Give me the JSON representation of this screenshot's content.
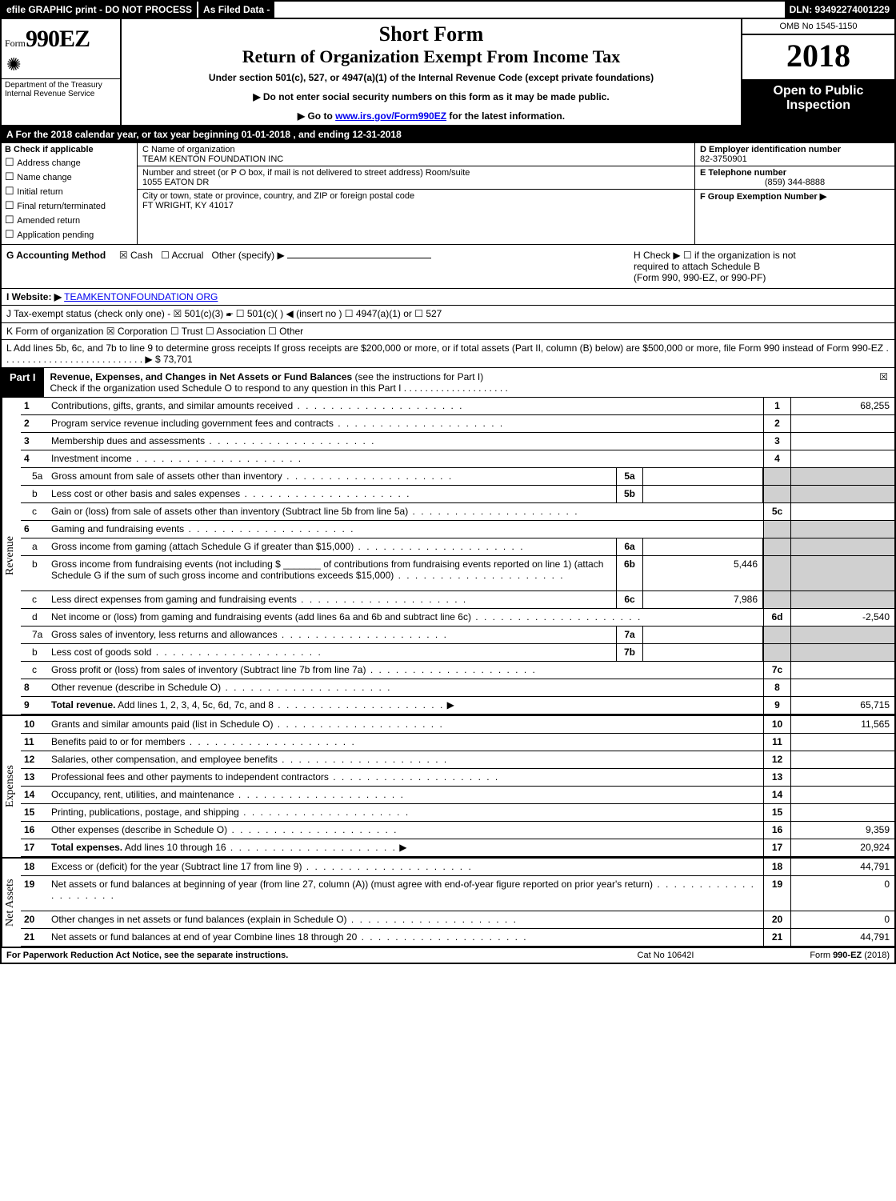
{
  "topbar": {
    "efile": "efile GRAPHIC print - DO NOT PROCESS",
    "asfiled_label": "As Filed Data -",
    "asfiled_value": "",
    "dln": "DLN: 93492274001229"
  },
  "header": {
    "form_small": "Form",
    "form_big": "990EZ",
    "shortform": "Short Form",
    "return_title": "Return of Organization Exempt From Income Tax",
    "under": "Under section 501(c), 527, or 4947(a)(1) of the Internal Revenue Code (except private foundations)",
    "arrow1": "▶ Do not enter social security numbers on this form as it may be made public.",
    "arrow2_pre": "▶ Go to ",
    "arrow2_link": "www.irs.gov/Form990EZ",
    "arrow2_post": " for the latest information.",
    "dept1": "Department of the Treasury",
    "dept2": "Internal Revenue Service",
    "omb": "OMB No 1545-1150",
    "year": "2018",
    "open": "Open to Public Inspection"
  },
  "lineA": "A  For the 2018 calendar year, or tax year beginning 01-01-2018             , and ending 12-31-2018",
  "b": {
    "title": "B  Check if applicable",
    "items": [
      "Address change",
      "Name change",
      "Initial return",
      "Final return/terminated",
      "Amended return",
      "Application pending"
    ]
  },
  "c": {
    "name_lbl": "C Name of organization",
    "name_val": "TEAM KENTON FOUNDATION INC",
    "street_lbl": "Number and street (or P O box, if mail is not delivered to street address)  Room/suite",
    "street_val": "1055 EATON DR",
    "city_lbl": "City or town, state or province, country, and ZIP or foreign postal code",
    "city_val": "FT WRIGHT, KY  41017"
  },
  "d": {
    "ein_lbl": "D Employer identification number",
    "ein_val": "82-3750901",
    "tel_lbl": "E Telephone number",
    "tel_val": "(859) 344-8888",
    "grp_lbl": "F Group Exemption Number   ▶"
  },
  "g": {
    "label": "G Accounting Method",
    "cash": "☒ Cash",
    "accrual": "☐ Accrual",
    "other": "Other (specify) ▶"
  },
  "h": {
    "line1": "H  Check ▶  ☐  if the organization is not",
    "line2": "required to attach Schedule B",
    "line3": "(Form 990, 990-EZ, or 990-PF)"
  },
  "i": {
    "label": "I Website: ▶",
    "link": "TEAMKENTONFOUNDATION ORG"
  },
  "j": "J Tax-exempt status (check only one) - ☒ 501(c)(3) 🖝 ☐ 501(c)(  ) ◀ (insert no ) ☐ 4947(a)(1) or ☐ 527",
  "k": "K Form of organization     ☒ Corporation   ☐ Trust   ☐ Association   ☐ Other",
  "l": {
    "text": "L Add lines 5b, 6c, and 7b to line 9 to determine gross receipts  If gross receipts are $200,000 or more, or if total assets (Part II, column (B) below) are $500,000 or more, file Form 990 instead of Form 990-EZ",
    "arrow": "▶ $ 73,701"
  },
  "part1": {
    "tab": "Part I",
    "title": "Revenue, Expenses, and Changes in Net Assets or Fund Balances",
    "paren": " (see the instructions for Part I)",
    "sub": "Check if the organization used Schedule O to respond to any question in this Part I",
    "chk": "☒"
  },
  "sections": {
    "revenue_label": "Revenue",
    "expenses_label": "Expenses",
    "netassets_label": "Net Assets"
  },
  "rows": [
    {
      "n": "1",
      "d": "Contributions, gifts, grants, and similar amounts received",
      "rn": "1",
      "rv": "68,255"
    },
    {
      "n": "2",
      "d": "Program service revenue including government fees and contracts",
      "rn": "2",
      "rv": ""
    },
    {
      "n": "3",
      "d": "Membership dues and assessments",
      "rn": "3",
      "rv": ""
    },
    {
      "n": "4",
      "d": "Investment income",
      "rn": "4",
      "rv": ""
    },
    {
      "n": "5a",
      "sub": true,
      "d": "Gross amount from sale of assets other than inventory",
      "mn": "5a",
      "mv": "",
      "shade": true
    },
    {
      "n": "b",
      "sub": true,
      "d": "Less  cost or other basis and sales expenses",
      "mn": "5b",
      "mv": "",
      "shade": true
    },
    {
      "n": "c",
      "sub": true,
      "d": "Gain or (loss) from sale of assets other than inventory (Subtract line 5b from line 5a)",
      "rn": "5c",
      "rv": ""
    },
    {
      "n": "6",
      "d": "Gaming and fundraising events",
      "shade": true,
      "noR": true
    },
    {
      "n": "a",
      "sub": true,
      "d": "Gross income from gaming (attach Schedule G if greater than $15,000)",
      "mn": "6a",
      "mv": "",
      "shade": true
    },
    {
      "n": "b",
      "sub": true,
      "d": "Gross income from fundraising events (not including $ _______ of contributions from fundraising events reported on line 1) (attach Schedule G if the sum of such gross income and contributions exceeds $15,000)",
      "mn": "6b",
      "mv": "5,446",
      "shade": true,
      "tall": true
    },
    {
      "n": "c",
      "sub": true,
      "d": "Less  direct expenses from gaming and fundraising events",
      "mn": "6c",
      "mv": "7,986",
      "shade": true
    },
    {
      "n": "d",
      "sub": true,
      "d": "Net income or (loss) from gaming and fundraising events (add lines 6a and 6b and subtract line 6c)",
      "rn": "6d",
      "rv": "-2,540"
    },
    {
      "n": "7a",
      "sub": true,
      "d": "Gross sales of inventory, less returns and allowances",
      "mn": "7a",
      "mv": "",
      "shade": true
    },
    {
      "n": "b",
      "sub": true,
      "d": "Less  cost of goods sold",
      "mn": "7b",
      "mv": "",
      "shade": true
    },
    {
      "n": "c",
      "sub": true,
      "d": "Gross profit or (loss) from sales of inventory (Subtract line 7b from line 7a)",
      "rn": "7c",
      "rv": ""
    },
    {
      "n": "8",
      "d": "Other revenue (describe in Schedule O)",
      "rn": "8",
      "rv": ""
    },
    {
      "n": "9",
      "d": "Total revenue. Add lines 1, 2, 3, 4, 5c, 6d, 7c, and 8",
      "rn": "9",
      "rv": "65,715",
      "bold": true,
      "arrow": true
    }
  ],
  "exp_rows": [
    {
      "n": "10",
      "d": "Grants and similar amounts paid (list in Schedule O)",
      "rn": "10",
      "rv": "11,565"
    },
    {
      "n": "11",
      "d": "Benefits paid to or for members",
      "rn": "11",
      "rv": ""
    },
    {
      "n": "12",
      "d": "Salaries, other compensation, and employee benefits",
      "rn": "12",
      "rv": ""
    },
    {
      "n": "13",
      "d": "Professional fees and other payments to independent contractors",
      "rn": "13",
      "rv": ""
    },
    {
      "n": "14",
      "d": "Occupancy, rent, utilities, and maintenance",
      "rn": "14",
      "rv": ""
    },
    {
      "n": "15",
      "d": "Printing, publications, postage, and shipping",
      "rn": "15",
      "rv": ""
    },
    {
      "n": "16",
      "d": "Other expenses (describe in Schedule O)",
      "rn": "16",
      "rv": "9,359"
    },
    {
      "n": "17",
      "d": "Total expenses. Add lines 10 through 16",
      "rn": "17",
      "rv": "20,924",
      "bold": true,
      "arrow": true
    }
  ],
  "na_rows": [
    {
      "n": "18",
      "d": "Excess or (deficit) for the year (Subtract line 17 from line 9)",
      "rn": "18",
      "rv": "44,791"
    },
    {
      "n": "19",
      "d": "Net assets or fund balances at beginning of year (from line 27, column (A)) (must agree with end-of-year figure reported on prior year's return)",
      "rn": "19",
      "rv": "0",
      "tall": true
    },
    {
      "n": "20",
      "d": "Other changes in net assets or fund balances (explain in Schedule O)",
      "rn": "20",
      "rv": "0"
    },
    {
      "n": "21",
      "d": "Net assets or fund balances at end of year  Combine lines 18 through 20",
      "rn": "21",
      "rv": "44,791"
    }
  ],
  "footer": {
    "left": "For Paperwork Reduction Act Notice, see the separate instructions.",
    "mid": "Cat  No  10642I",
    "right": "Form 990-EZ (2018)"
  }
}
